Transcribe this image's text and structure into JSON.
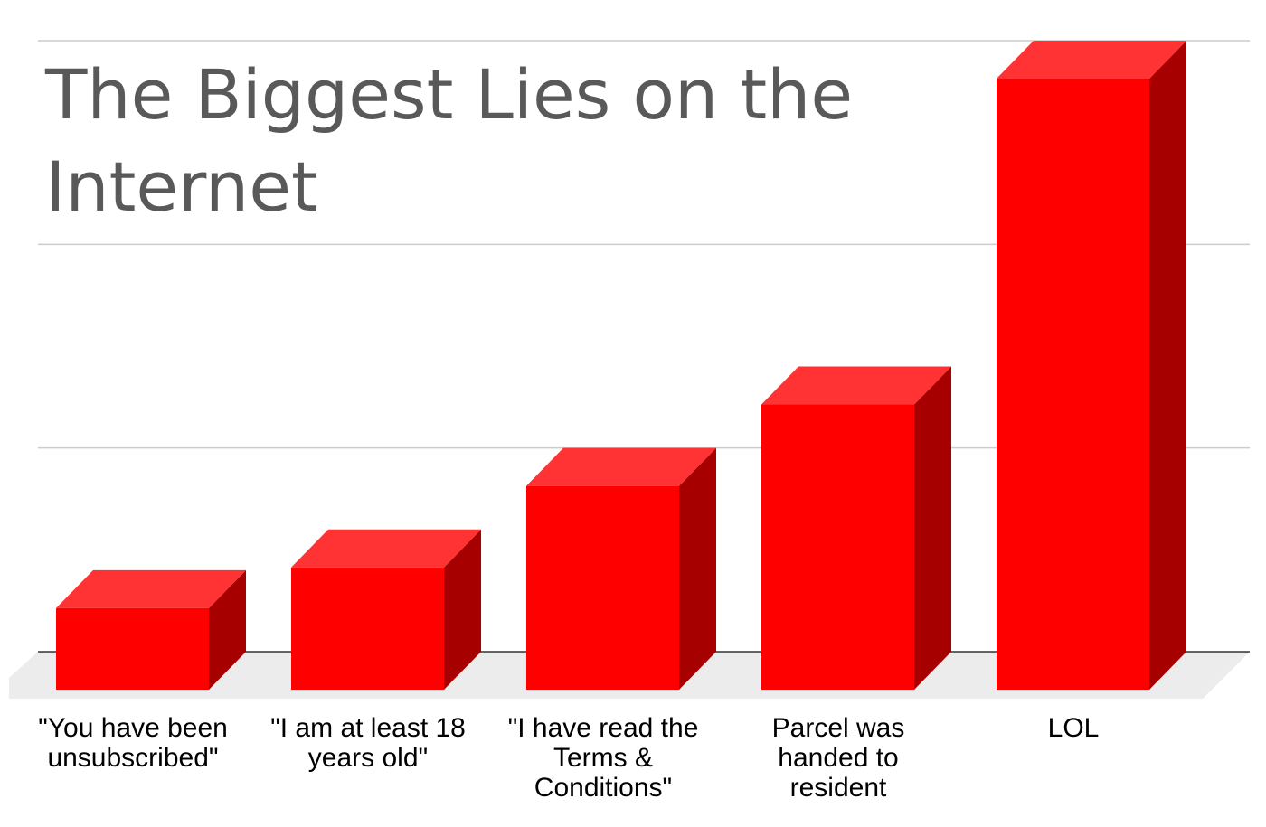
{
  "chart_data": {
    "type": "bar",
    "title_lines": [
      "The Biggest Lies on the",
      "Internet"
    ],
    "categories": [
      "\"You have been unsubscribed\"",
      "\"I am at least 18 years old\"",
      "\"I have read the Terms & Conditions\"",
      "Parcel was handed to resident",
      "LOL"
    ],
    "category_label_lines": [
      [
        "\"You have been",
        "unsubscribed\""
      ],
      [
        "\"I am at least 18",
        "years old\""
      ],
      [
        "\"I have read the",
        "Terms &",
        "Conditions\""
      ],
      [
        "Parcel was",
        "handed to",
        "resident"
      ],
      [
        "LOL"
      ]
    ],
    "values": [
      20,
      30,
      50,
      70,
      150
    ],
    "xlabel": "",
    "ylabel": "",
    "ylim": [
      0,
      150
    ],
    "grid": true,
    "three_d": true,
    "legend": "none",
    "colors": {
      "bar_front": "#ff0000",
      "bar_top": "#ff3333",
      "bar_side": "#a60000",
      "floor": "#ececec",
      "gridline": "#cccccc",
      "baseline": "#333333",
      "title": "#595959",
      "label": "#000000"
    }
  }
}
